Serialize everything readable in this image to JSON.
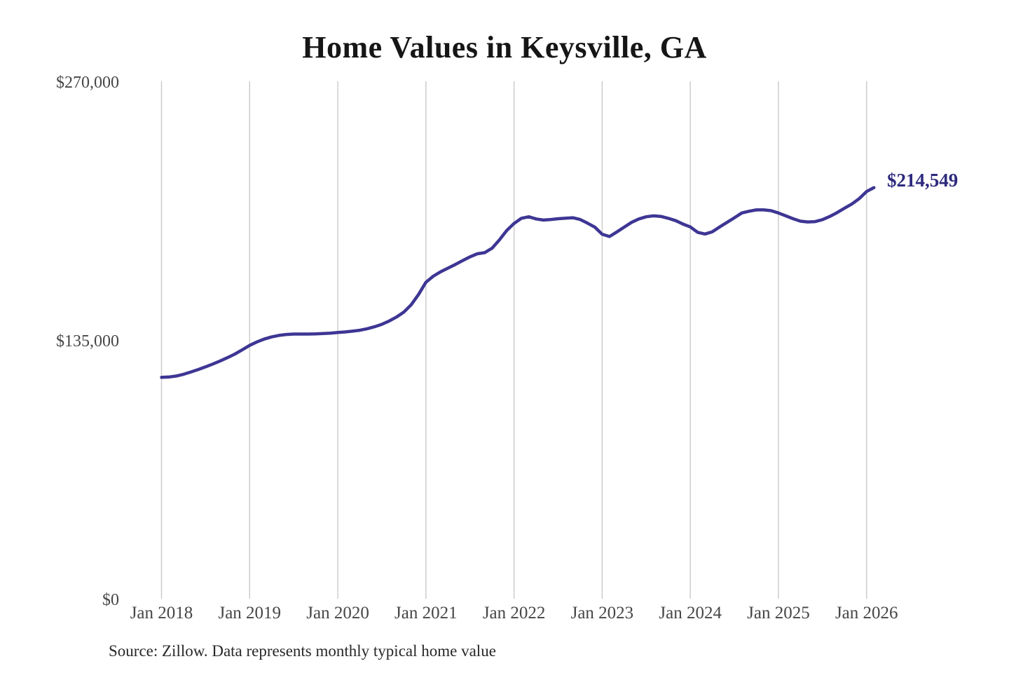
{
  "page": {
    "background_color": "#ffffff"
  },
  "chart": {
    "title": "Home Values in Keysville, GA",
    "end_label": "$214,549",
    "source": "Source: Zillow. Data represents monthly typical home value",
    "line_color": "#3e3694",
    "end_label_color": "#2d2a7d",
    "grid_color": "#c9c9c9",
    "tick_color": "#464646"
  },
  "chart_data": {
    "type": "line",
    "title": "Home Values in Keysville, GA",
    "series_name": "Typical home value ($)",
    "x": [
      "2018-01",
      "2018-02",
      "2018-03",
      "2018-04",
      "2018-05",
      "2018-06",
      "2018-07",
      "2018-08",
      "2018-09",
      "2018-10",
      "2018-11",
      "2018-12",
      "2019-01",
      "2019-02",
      "2019-03",
      "2019-04",
      "2019-05",
      "2019-06",
      "2019-07",
      "2019-08",
      "2019-09",
      "2019-10",
      "2019-11",
      "2019-12",
      "2020-01",
      "2020-02",
      "2020-03",
      "2020-04",
      "2020-05",
      "2020-06",
      "2020-07",
      "2020-08",
      "2020-09",
      "2020-10",
      "2020-11",
      "2020-12",
      "2021-01",
      "2021-02",
      "2021-03",
      "2021-04",
      "2021-05",
      "2021-06",
      "2021-07",
      "2021-08",
      "2021-09",
      "2021-10",
      "2021-11",
      "2021-12",
      "2022-01",
      "2022-02",
      "2022-03",
      "2022-04",
      "2022-05",
      "2022-06",
      "2022-07",
      "2022-08",
      "2022-09",
      "2022-10",
      "2022-11",
      "2022-12",
      "2023-01",
      "2023-02",
      "2023-03",
      "2023-04",
      "2023-05",
      "2023-06",
      "2023-07",
      "2023-08",
      "2023-09",
      "2023-10",
      "2023-11",
      "2023-12",
      "2024-01",
      "2024-02",
      "2024-03",
      "2024-04",
      "2024-05",
      "2024-06",
      "2024-07",
      "2024-08",
      "2024-09",
      "2024-10",
      "2024-11",
      "2024-12",
      "2025-01",
      "2025-02",
      "2025-03",
      "2025-04",
      "2025-05",
      "2025-06",
      "2025-07",
      "2025-08",
      "2025-09",
      "2025-10",
      "2025-11",
      "2025-12",
      "2026-01",
      "2026-02"
    ],
    "values": [
      115500,
      115700,
      116200,
      117100,
      118300,
      119600,
      121000,
      122500,
      124100,
      125800,
      127700,
      129900,
      132200,
      134000,
      135500,
      136600,
      137400,
      137900,
      138100,
      138100,
      138100,
      138200,
      138400,
      138600,
      138900,
      139200,
      139600,
      140100,
      140900,
      141900,
      143200,
      144900,
      147000,
      149600,
      153400,
      158800,
      165100,
      168300,
      170600,
      172500,
      174400,
      176400,
      178400,
      180000,
      180600,
      182900,
      187200,
      192100,
      195800,
      198500,
      199300,
      198200,
      197600,
      197900,
      198300,
      198600,
      198800,
      197900,
      196000,
      193900,
      190200,
      189000,
      191400,
      193900,
      196400,
      198200,
      199300,
      199800,
      199500,
      198500,
      197300,
      195500,
      194000,
      191200,
      190300,
      191500,
      194000,
      196400,
      198800,
      201300,
      202200,
      202900,
      202900,
      202500,
      201300,
      199800,
      198300,
      197000,
      196600,
      196800,
      197800,
      199500,
      201500,
      203800,
      206000,
      208800,
      212500,
      214549
    ],
    "last_value": 214549,
    "last_value_label": "$214,549",
    "x_tick_labels": [
      "Jan 2018",
      "Jan 2019",
      "Jan 2020",
      "Jan 2021",
      "Jan 2022",
      "Jan 2023",
      "Jan 2024",
      "Jan 2025",
      "Jan 2026"
    ],
    "y_tick_labels": [
      "$0",
      "$135,000",
      "$270,000"
    ],
    "y_ticks": [
      0,
      135000,
      270000
    ],
    "ylim": [
      0,
      270000
    ],
    "xlabel": "",
    "ylabel": "",
    "grid": "vertical-only",
    "legend": "none",
    "source": "Source: Zillow. Data represents monthly typical home value"
  }
}
